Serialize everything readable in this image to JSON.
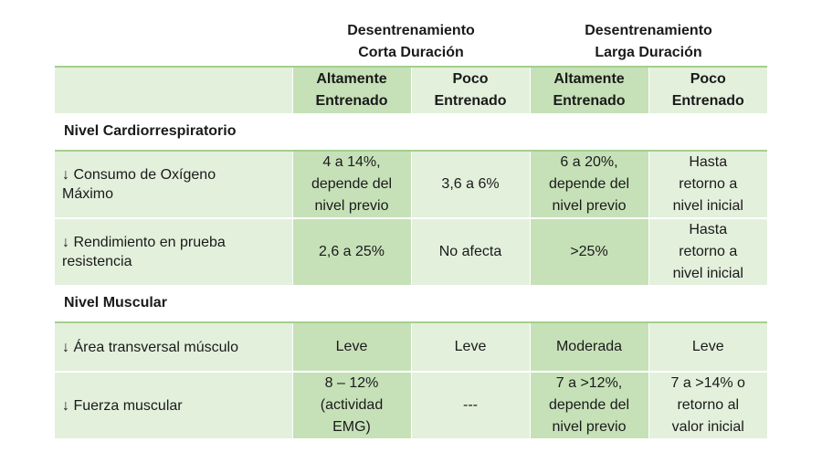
{
  "groups": {
    "short": {
      "line1": "Desentrenamiento",
      "line2": "Corta Duración"
    },
    "long": {
      "line1": "Desentrenamiento",
      "line2": "Larga Duración"
    }
  },
  "columns": {
    "short_high": [
      "Altamente",
      "Entrenado"
    ],
    "short_low": [
      "Poco",
      "Entrenado"
    ],
    "long_high": [
      "Altamente",
      "Entrenado"
    ],
    "long_low": [
      "Poco",
      "Entrenado"
    ]
  },
  "sections": {
    "cardio": "Nivel Cardiorrespiratorio",
    "muscle": "Nivel Muscular"
  },
  "rows": [
    {
      "label": [
        "↓ Consumo de Oxígeno",
        "Máximo"
      ],
      "short_high": [
        "4 a 14%,",
        "depende del",
        "nivel previo"
      ],
      "short_low": [
        "3,6 a 6%"
      ],
      "long_high": [
        "6 a 20%,",
        "depende del",
        "nivel previo"
      ],
      "long_low": [
        "Hasta",
        "retorno a",
        "nivel inicial"
      ]
    },
    {
      "label": [
        "↓ Rendimiento en prueba",
        "resistencia"
      ],
      "short_high": [
        "2,6 a 25%"
      ],
      "short_low": [
        "No afecta"
      ],
      "long_high": [
        ">25%"
      ],
      "long_low": [
        "Hasta",
        "retorno a",
        "nivel inicial"
      ]
    },
    {
      "label": [
        "↓ Área transversal músculo"
      ],
      "short_high": [
        "Leve"
      ],
      "short_low": [
        "Leve"
      ],
      "long_high": [
        "Moderada"
      ],
      "long_low": [
        "Leve"
      ]
    },
    {
      "label": [
        "↓ Fuerza muscular"
      ],
      "short_high": [
        "8 – 12%",
        "(actividad",
        "EMG)"
      ],
      "short_low": [
        "---"
      ],
      "long_high": [
        "7 a >12%,",
        "depende del",
        "nivel previo"
      ],
      "long_low": [
        "7 a >14% o",
        "retorno al",
        "valor inicial"
      ]
    }
  ]
}
